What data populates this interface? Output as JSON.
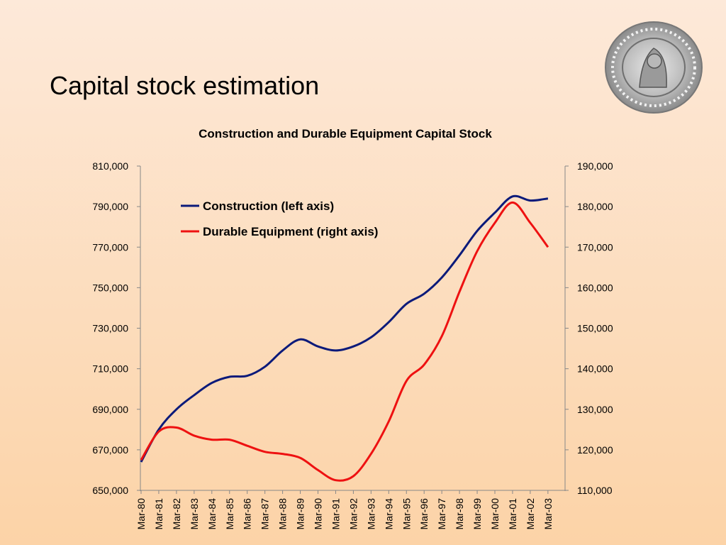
{
  "slide": {
    "title": "Capital stock estimation"
  },
  "colors": {
    "construction": "#0b1a7a",
    "equipment": "#ee1111",
    "axis": "#888888"
  },
  "chart_data": {
    "type": "line",
    "title": "Construction and Durable Equipment Capital Stock",
    "legend_placement": "top-left",
    "grid": false,
    "x": [
      "Mar-80",
      "Mar-81",
      "Mar-82",
      "Mar-83",
      "Mar-84",
      "Mar-85",
      "Mar-86",
      "Mar-87",
      "Mar-88",
      "Mar-89",
      "Mar-90",
      "Mar-91",
      "Mar-92",
      "Mar-93",
      "Mar-94",
      "Mar-95",
      "Mar-96",
      "Mar-97",
      "Mar-98",
      "Mar-99",
      "Mar-00",
      "Mar-01",
      "Mar-02",
      "Mar-03"
    ],
    "y_left": {
      "range": [
        650000,
        810000
      ],
      "ticks": [
        "810,000",
        "790,000",
        "770,000",
        "750,000",
        "730,000",
        "710,000",
        "690,000",
        "670,000",
        "650,000"
      ]
    },
    "y_right": {
      "range": [
        110000,
        190000
      ],
      "ticks": [
        "190,000",
        "180,000",
        "170,000",
        "160,000",
        "150,000",
        "140,000",
        "130,000",
        "120,000",
        "110,000"
      ]
    },
    "series": [
      {
        "name": "Construction (left axis)",
        "axis": "left",
        "values": [
          664000,
          680000,
          690000,
          697000,
          703000,
          706000,
          706500,
          711000,
          719000,
          724500,
          721000,
          719000,
          721000,
          725500,
          733000,
          742000,
          747000,
          755000,
          766000,
          778000,
          787000,
          795000,
          793000,
          794000
        ]
      },
      {
        "name": "Durable Equipment (right axis)",
        "axis": "right",
        "values": [
          117500,
          124500,
          125500,
          123500,
          122500,
          122500,
          121000,
          119500,
          119000,
          118000,
          115000,
          112500,
          113500,
          119000,
          127000,
          137000,
          141000,
          148000,
          159000,
          169000,
          176000,
          181000,
          176000,
          170000
        ]
      }
    ]
  }
}
